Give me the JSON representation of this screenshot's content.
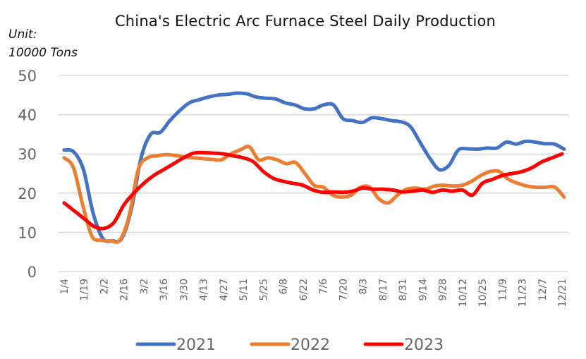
{
  "chart_data": {
    "type": "line",
    "title": "China's Electric Arc Furnace Steel Daily Production",
    "unit_label_line1": "Unit:",
    "unit_label_line2": "10000 Tons",
    "xlabel": "",
    "ylabel": "10000 Tons",
    "ylim": [
      0,
      50
    ],
    "yticks": [
      0,
      10,
      20,
      30,
      40,
      50
    ],
    "grid": true,
    "legend_position": "bottom",
    "x_tick_labels": [
      "1/4",
      "1/19",
      "2/2",
      "2/16",
      "3/2",
      "3/16",
      "3/30",
      "4/13",
      "4/27",
      "5/11",
      "5/25",
      "6/8",
      "6/22",
      "7/6",
      "7/20",
      "8/3",
      "8/17",
      "8/31",
      "9/14",
      "9/28",
      "10/12",
      "10/25",
      "11/9",
      "11/23",
      "12/7",
      "12/21"
    ],
    "x_note": "weekly observations; each x tick label spans 2 weeks",
    "series": [
      {
        "name": "2021",
        "color": "#4472C4",
        "values": [
          31.0,
          30.5,
          26.0,
          15.0,
          8.5,
          7.8,
          8.5,
          16.0,
          29.0,
          35.0,
          35.5,
          38.5,
          41.0,
          43.0,
          43.8,
          44.5,
          45.0,
          45.2,
          45.5,
          45.3,
          44.5,
          44.2,
          44.0,
          43.0,
          42.5,
          41.5,
          41.5,
          42.5,
          42.5,
          39.0,
          38.5,
          38.0,
          39.2,
          39.0,
          38.5,
          38.2,
          37.0,
          33.0,
          29.0,
          26.0,
          27.0,
          31.0,
          31.3,
          31.2,
          31.5,
          31.5,
          33.0,
          32.5,
          33.2,
          33.0,
          32.6,
          32.5,
          31.2
        ]
      },
      {
        "name": "2022",
        "color": "#ED7D31",
        "values": [
          29.0,
          26.5,
          17.0,
          9.0,
          8.0,
          7.8,
          8.0,
          14.0,
          26.0,
          29.0,
          29.5,
          29.8,
          29.6,
          29.2,
          29.0,
          28.8,
          28.6,
          28.5,
          30.0,
          31.0,
          31.8,
          28.5,
          29.0,
          28.5,
          27.5,
          27.8,
          25.0,
          22.0,
          21.5,
          19.5,
          19.0,
          19.5,
          21.5,
          21.5,
          18.5,
          17.5,
          19.5,
          21.0,
          21.3,
          21.0,
          21.8,
          22.0,
          21.8,
          22.0,
          23.0,
          24.5,
          25.5,
          25.5,
          23.5,
          22.5,
          21.8,
          21.5,
          21.5,
          21.5,
          19.0
        ]
      },
      {
        "name": "2023",
        "color": "#FF0000",
        "values": [
          17.5,
          15.5,
          13.5,
          11.5,
          11.0,
          12.5,
          17.0,
          20.0,
          22.5,
          24.5,
          26.0,
          27.5,
          29.0,
          30.2,
          30.3,
          30.2,
          30.0,
          29.5,
          29.0,
          28.0,
          25.5,
          23.8,
          23.0,
          22.5,
          22.0,
          20.8,
          20.2,
          20.3,
          20.2,
          20.5,
          21.3,
          21.0,
          21.0,
          20.8,
          20.3,
          20.5,
          20.8,
          20.2,
          20.8,
          20.5,
          20.8,
          19.5,
          22.5,
          23.5,
          24.5,
          25.0,
          25.5,
          26.5,
          28.0,
          29.0,
          30.0
        ]
      }
    ]
  },
  "legend": [
    {
      "label": "2021",
      "color": "#4472C4"
    },
    {
      "label": "2022",
      "color": "#ED7D31"
    },
    {
      "label": "2023",
      "color": "#FF0000"
    }
  ]
}
